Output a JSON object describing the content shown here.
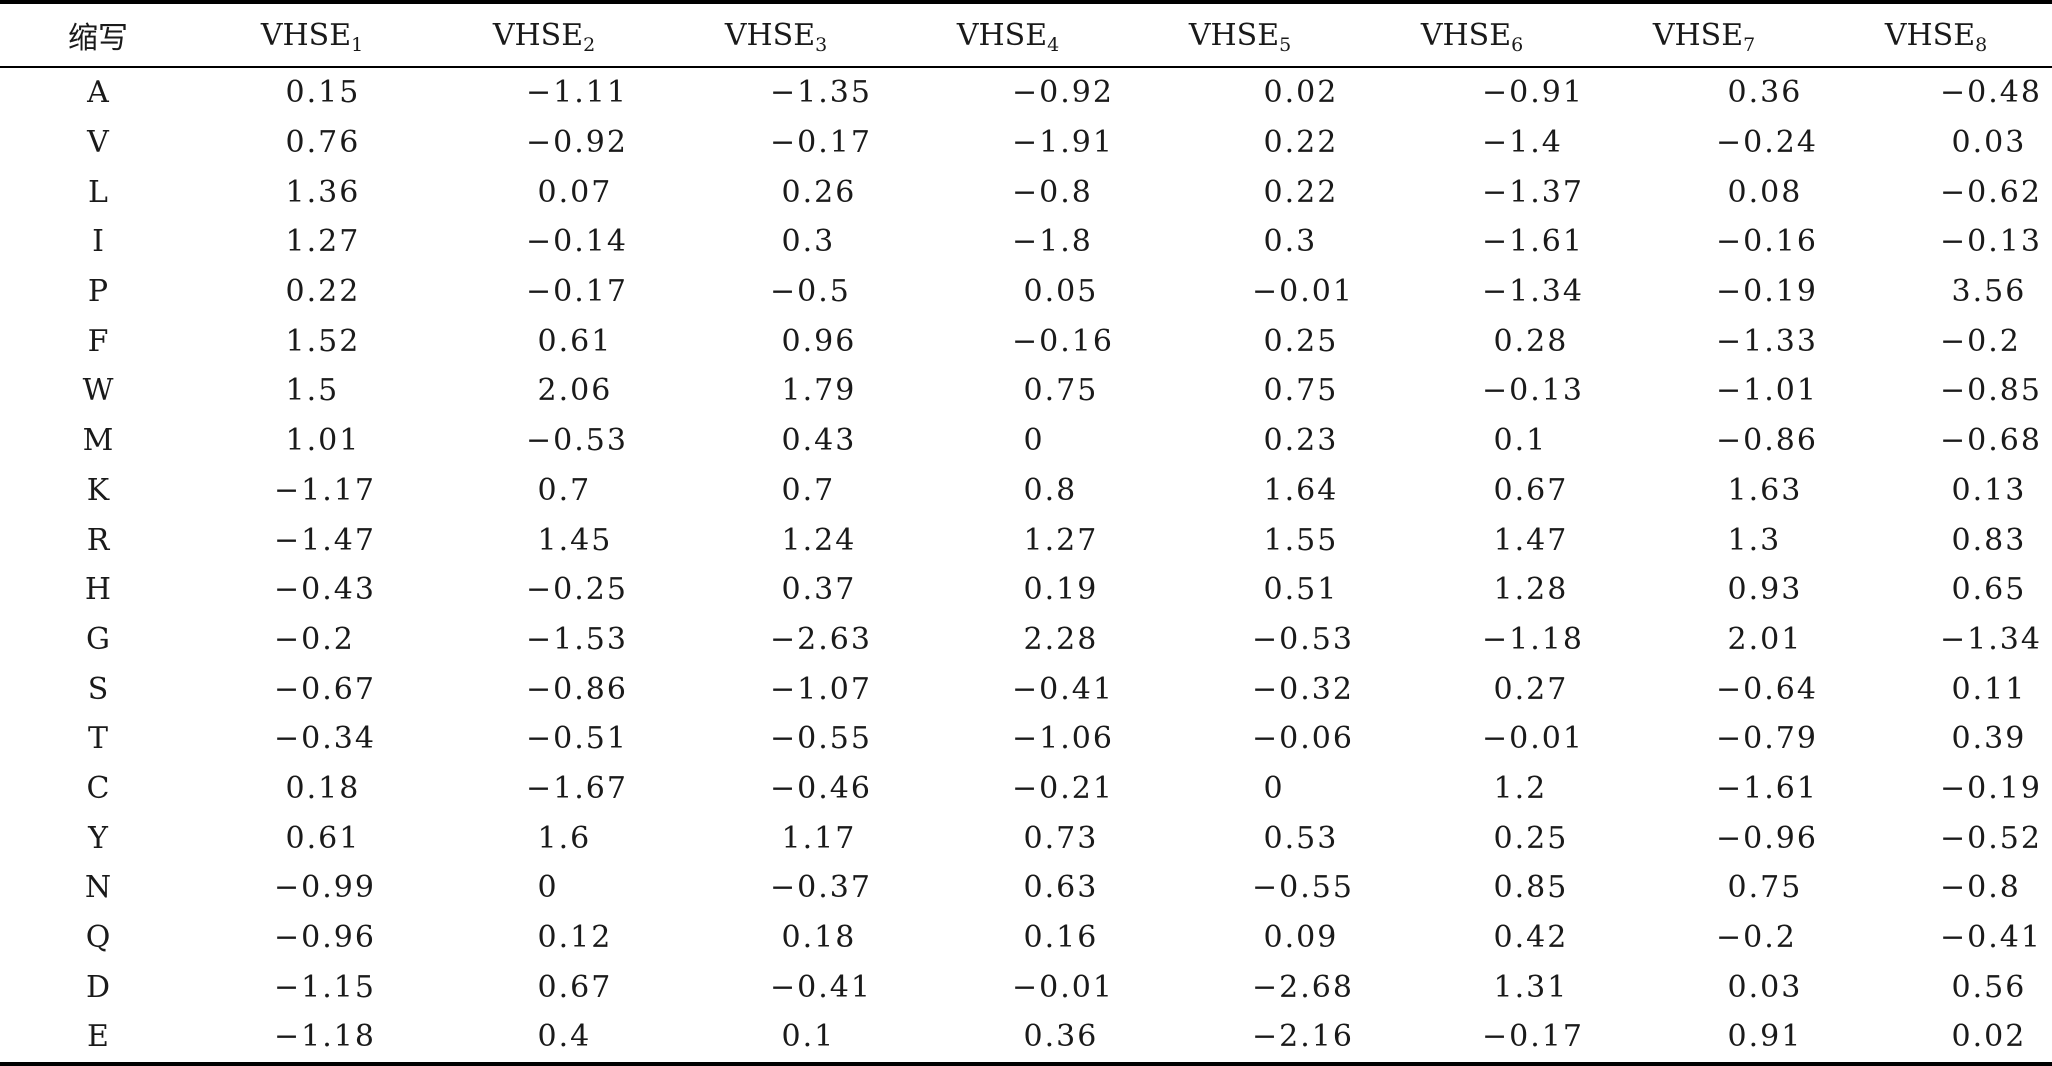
{
  "table": {
    "header": {
      "abbr": "缩写",
      "columns": [
        {
          "base": "VHSE",
          "sub": "1"
        },
        {
          "base": "VHSE",
          "sub": "2"
        },
        {
          "base": "VHSE",
          "sub": "3"
        },
        {
          "base": "VHSE",
          "sub": "4"
        },
        {
          "base": "VHSE",
          "sub": "5"
        },
        {
          "base": "VHSE",
          "sub": "6"
        },
        {
          "base": "VHSE",
          "sub": "7"
        },
        {
          "base": "VHSE",
          "sub": "8"
        }
      ]
    },
    "rows": [
      {
        "abbr": "A",
        "values": [
          " 0.15",
          "−1.11",
          "−1.35",
          "−0.92",
          " 0.02",
          "−0.91",
          " 0.36",
          "−0.48"
        ]
      },
      {
        "abbr": "V",
        "values": [
          " 0.76",
          "−0.92",
          "−0.17",
          "−1.91",
          " 0.22",
          "−1.4",
          "−0.24",
          " 0.03"
        ]
      },
      {
        "abbr": "L",
        "values": [
          " 1.36",
          " 0.07",
          " 0.26",
          "−0.8",
          " 0.22",
          "−1.37",
          " 0.08",
          "−0.62"
        ]
      },
      {
        "abbr": "I",
        "values": [
          " 1.27",
          "−0.14",
          " 0.3",
          "−1.8",
          " 0.3",
          "−1.61",
          "−0.16",
          "−0.13"
        ]
      },
      {
        "abbr": "P",
        "values": [
          " 0.22",
          "−0.17",
          "−0.5",
          " 0.05",
          "−0.01",
          "−1.34",
          "−0.19",
          " 3.56"
        ]
      },
      {
        "abbr": "F",
        "values": [
          " 1.52",
          " 0.61",
          " 0.96",
          "−0.16",
          " 0.25",
          " 0.28",
          "−1.33",
          "−0.2"
        ]
      },
      {
        "abbr": "W",
        "values": [
          " 1.5",
          " 2.06",
          " 1.79",
          " 0.75",
          " 0.75",
          "−0.13",
          "−1.01",
          "−0.85"
        ]
      },
      {
        "abbr": "M",
        "values": [
          " 1.01",
          "−0.53",
          " 0.43",
          " 0",
          " 0.23",
          " 0.1",
          "−0.86",
          "−0.68"
        ]
      },
      {
        "abbr": "K",
        "values": [
          "−1.17",
          " 0.7",
          " 0.7",
          " 0.8",
          " 1.64",
          " 0.67",
          " 1.63",
          " 0.13"
        ]
      },
      {
        "abbr": "R",
        "values": [
          "−1.47",
          " 1.45",
          " 1.24",
          " 1.27",
          " 1.55",
          " 1.47",
          " 1.3",
          " 0.83"
        ]
      },
      {
        "abbr": "H",
        "values": [
          "−0.43",
          "−0.25",
          " 0.37",
          " 0.19",
          " 0.51",
          " 1.28",
          " 0.93",
          " 0.65"
        ]
      },
      {
        "abbr": "G",
        "values": [
          "−0.2",
          "−1.53",
          "−2.63",
          " 2.28",
          "−0.53",
          "−1.18",
          " 2.01",
          "−1.34"
        ]
      },
      {
        "abbr": "S",
        "values": [
          "−0.67",
          "−0.86",
          "−1.07",
          "−0.41",
          "−0.32",
          " 0.27",
          "−0.64",
          " 0.11"
        ]
      },
      {
        "abbr": "T",
        "values": [
          "−0.34",
          "−0.51",
          "−0.55",
          "−1.06",
          "−0.06",
          "−0.01",
          "−0.79",
          " 0.39"
        ]
      },
      {
        "abbr": "C",
        "values": [
          " 0.18",
          "−1.67",
          "−0.46",
          "−0.21",
          " 0",
          " 1.2",
          "−1.61",
          "−0.19"
        ]
      },
      {
        "abbr": "Y",
        "values": [
          " 0.61",
          " 1.6",
          " 1.17",
          " 0.73",
          " 0.53",
          " 0.25",
          "−0.96",
          "−0.52"
        ]
      },
      {
        "abbr": "N",
        "values": [
          "−0.99",
          " 0",
          "−0.37",
          " 0.63",
          "−0.55",
          " 0.85",
          " 0.75",
          "−0.8"
        ]
      },
      {
        "abbr": "Q",
        "values": [
          "−0.96",
          " 0.12",
          " 0.18",
          " 0.16",
          " 0.09",
          " 0.42",
          "−0.2",
          "−0.41"
        ]
      },
      {
        "abbr": "D",
        "values": [
          "−1.15",
          " 0.67",
          "−0.41",
          "−0.01",
          "−2.68",
          " 1.31",
          " 0.03",
          " 0.56"
        ]
      },
      {
        "abbr": "E",
        "values": [
          "−1.18",
          " 0.4",
          " 0.1",
          " 0.36",
          "−2.16",
          "−0.17",
          " 0.91",
          " 0.02"
        ]
      }
    ]
  }
}
